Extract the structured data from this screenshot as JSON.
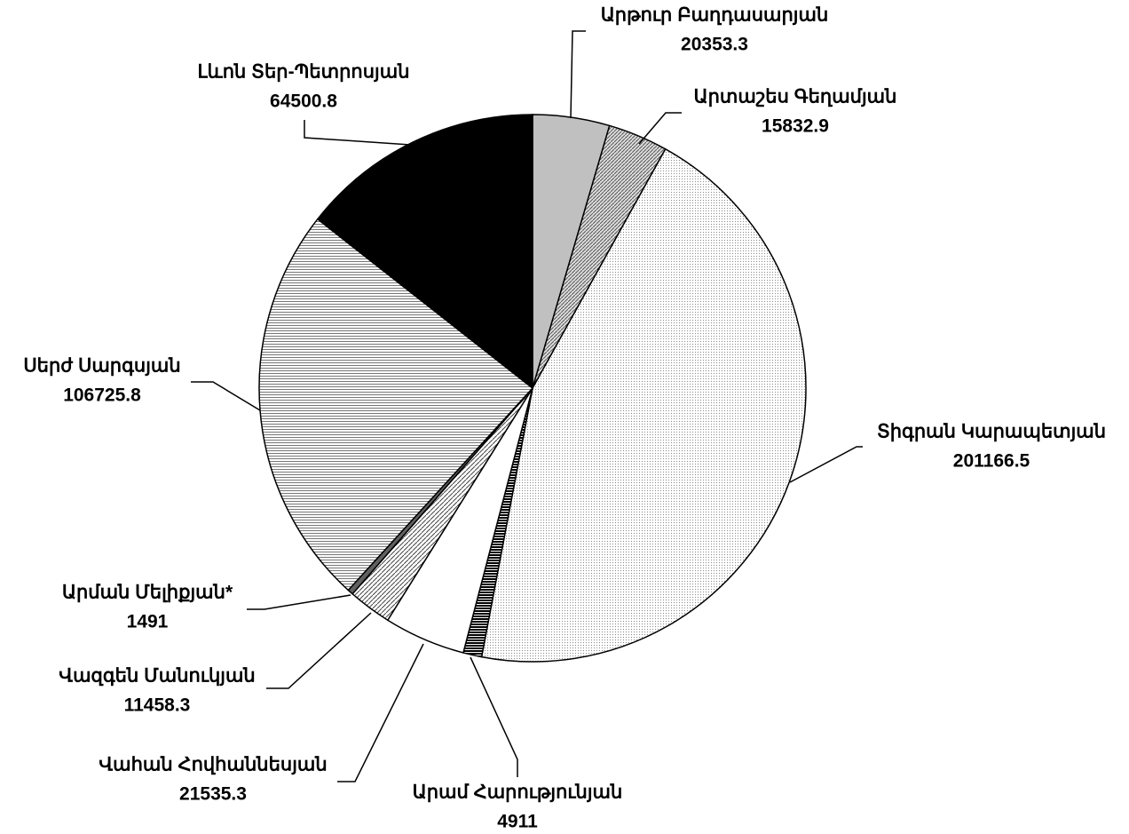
{
  "chart_data": {
    "type": "pie",
    "categories": [
      "Արթուր Բաղդասարյան",
      "Արտաշես Գեղամյան",
      "Տիգրան Կարապետյան",
      "Արամ Հարությունյան",
      "Վահան Հովհաննեսյան",
      "Վազգեն Մանուկյան",
      "Արման Մելիքյան*",
      "Սերժ Սարգսյան",
      "Լևոն Տեր-Պետրոսյան"
    ],
    "values": [
      20353.3,
      15832.9,
      201166.5,
      4911,
      21535.3,
      11458.3,
      1491,
      106725.8,
      64500.8
    ],
    "fills": [
      "#c0c0c0",
      "diag-fine",
      "dots",
      "hstripes",
      "#ffffff",
      "diag-wide",
      "#606060",
      "hlines",
      "#000000"
    ]
  }
}
